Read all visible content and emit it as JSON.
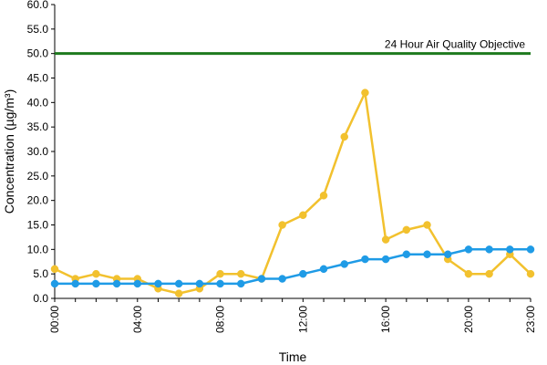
{
  "chart_data": {
    "type": "line",
    "title": "",
    "xlabel": "Time",
    "ylabel": "Concentration (µg/m³)",
    "ylim": [
      0,
      60
    ],
    "y_ticks": [
      "0.0",
      "5.0",
      "10.0",
      "15.0",
      "20.0",
      "25.0",
      "30.0",
      "35.0",
      "40.0",
      "45.0",
      "50.0",
      "55.0",
      "60.0"
    ],
    "x_tick_labels": [
      "00:00",
      "04:00",
      "08:00",
      "12:00",
      "16:00",
      "20:00",
      "23:00"
    ],
    "x_tick_hours": [
      0,
      4,
      8,
      12,
      16,
      20,
      23
    ],
    "x": [
      0,
      1,
      2,
      3,
      4,
      5,
      6,
      7,
      8,
      9,
      10,
      11,
      12,
      13,
      14,
      15,
      16,
      17,
      18,
      19,
      20,
      21,
      22,
      23
    ],
    "series": [
      {
        "color": "#f2c12e",
        "values": [
          6,
          4,
          5,
          4,
          4,
          2,
          1,
          2,
          5,
          5,
          4,
          15,
          17,
          21,
          33,
          42,
          12,
          14,
          15,
          8,
          5,
          5,
          9,
          5
        ]
      },
      {
        "color": "#1f9be6",
        "values": [
          3,
          3,
          3,
          3,
          3,
          3,
          3,
          3,
          3,
          3,
          4,
          4,
          5,
          6,
          7,
          8,
          8,
          9,
          9,
          9,
          10,
          10,
          10,
          10
        ]
      }
    ],
    "reference_line": {
      "value": 50,
      "label": "24 Hour Air Quality Objective",
      "color": "#1e7a1e"
    },
    "grid": false,
    "legend": "none"
  }
}
